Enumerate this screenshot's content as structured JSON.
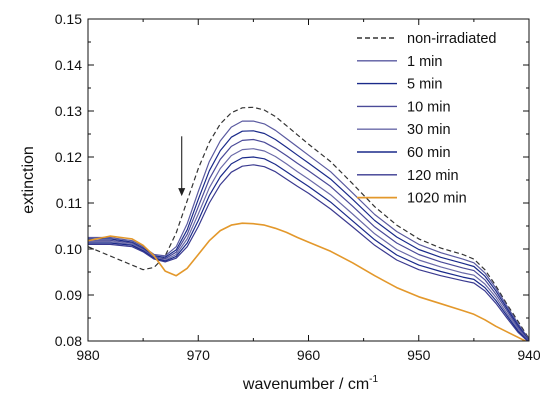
{
  "chart_data": {
    "type": "line",
    "title": "",
    "xlabel": "wavenumber / cm",
    "xlabel_superscript": "-1",
    "ylabel": "extinction",
    "xlim": [
      980,
      940
    ],
    "ylim": [
      0.08,
      0.15
    ],
    "x_reversed": true,
    "grid": false,
    "legend_position": "top-right",
    "x_ticks": [
      "980",
      "970",
      "960",
      "950",
      "940"
    ],
    "y_ticks": [
      "0.08",
      "0.09",
      "0.10",
      "0.11",
      "0.12",
      "0.13",
      "0.14",
      "0.15"
    ],
    "annotations": [
      {
        "type": "arrow",
        "direction": "down",
        "x": 971.5,
        "y_from": 0.1245,
        "y_to": 0.1115
      }
    ],
    "series": [
      {
        "name": "non-irradiated",
        "color": "#333333",
        "dash": true,
        "x": [
          980,
          978,
          976,
          975,
          974,
          973,
          972,
          971,
          970,
          969,
          968,
          967,
          966,
          965,
          964,
          963,
          962,
          961,
          960,
          958,
          956,
          954,
          952,
          950,
          948,
          946,
          945,
          944,
          943,
          942,
          941,
          940
        ],
        "y": [
          0.1005,
          0.0985,
          0.0965,
          0.0955,
          0.096,
          0.0985,
          0.1035,
          0.1105,
          0.1175,
          0.1232,
          0.1272,
          0.1296,
          0.1307,
          0.1308,
          0.1302,
          0.1288,
          0.1268,
          0.1248,
          0.1228,
          0.119,
          0.1142,
          0.1092,
          0.1052,
          0.1022,
          0.1002,
          0.0988,
          0.0978,
          0.0955,
          0.092,
          0.088,
          0.0843,
          0.0805
        ]
      },
      {
        "name": "1 min",
        "color": "#5a5aa0",
        "dash": false,
        "x": [
          980,
          978,
          976,
          975,
          974,
          973,
          972,
          971,
          970,
          969,
          968,
          967,
          966,
          965,
          964,
          963,
          962,
          961,
          960,
          958,
          956,
          954,
          952,
          950,
          948,
          946,
          945,
          944,
          943,
          942,
          941,
          940
        ],
        "y": [
          0.1025,
          0.1025,
          0.1018,
          0.1005,
          0.0988,
          0.0985,
          0.1005,
          0.1055,
          0.1125,
          0.119,
          0.1235,
          0.1265,
          0.1278,
          0.1278,
          0.1272,
          0.1258,
          0.124,
          0.1222,
          0.1204,
          0.1168,
          0.1122,
          0.1075,
          0.1038,
          0.101,
          0.0992,
          0.0978,
          0.097,
          0.0948,
          0.0915,
          0.0876,
          0.0838,
          0.0803
        ]
      },
      {
        "name": "5 min",
        "color": "#1a2a8a",
        "dash": false,
        "x": [
          980,
          978,
          976,
          975,
          974,
          973,
          972,
          971,
          970,
          969,
          968,
          967,
          966,
          965,
          964,
          963,
          962,
          961,
          960,
          958,
          956,
          954,
          952,
          950,
          948,
          946,
          945,
          944,
          943,
          942,
          941,
          940
        ],
        "y": [
          0.1022,
          0.1022,
          0.1015,
          0.1002,
          0.0985,
          0.0982,
          0.0998,
          0.1042,
          0.1108,
          0.117,
          0.1214,
          0.1243,
          0.1256,
          0.1257,
          0.1251,
          0.1238,
          0.1221,
          0.1204,
          0.1187,
          0.1152,
          0.1108,
          0.1062,
          0.1026,
          0.0999,
          0.0982,
          0.0969,
          0.0962,
          0.0941,
          0.0909,
          0.0871,
          0.0834,
          0.0801
        ]
      },
      {
        "name": "10 min",
        "color": "#4a4a98",
        "dash": false,
        "x": [
          980,
          978,
          976,
          975,
          974,
          973,
          972,
          971,
          970,
          969,
          968,
          967,
          966,
          965,
          964,
          963,
          962,
          961,
          960,
          958,
          956,
          954,
          952,
          950,
          948,
          946,
          945,
          944,
          943,
          942,
          941,
          940
        ],
        "y": [
          0.1019,
          0.1019,
          0.1013,
          0.1,
          0.0983,
          0.0979,
          0.0993,
          0.1032,
          0.1092,
          0.1152,
          0.1195,
          0.1223,
          0.1236,
          0.1238,
          0.1232,
          0.1219,
          0.1203,
          0.1186,
          0.117,
          0.1136,
          0.1093,
          0.1048,
          0.1013,
          0.0988,
          0.0972,
          0.0959,
          0.0953,
          0.0933,
          0.0902,
          0.0866,
          0.083,
          0.08
        ]
      },
      {
        "name": "30 min",
        "color": "#6a6aa8",
        "dash": false,
        "x": [
          980,
          978,
          976,
          975,
          974,
          973,
          972,
          971,
          970,
          969,
          968,
          967,
          966,
          965,
          964,
          963,
          962,
          961,
          960,
          958,
          956,
          954,
          952,
          950,
          948,
          946,
          945,
          944,
          943,
          942,
          941,
          940
        ],
        "y": [
          0.1016,
          0.1016,
          0.101,
          0.0998,
          0.0981,
          0.0976,
          0.0988,
          0.1022,
          0.1076,
          0.1133,
          0.1175,
          0.1203,
          0.1216,
          0.1218,
          0.1213,
          0.1201,
          0.1185,
          0.1168,
          0.1152,
          0.1118,
          0.1076,
          0.1033,
          0.0999,
          0.0976,
          0.0961,
          0.0948,
          0.0943,
          0.0924,
          0.0895,
          0.086,
          0.0826,
          0.0799
        ]
      },
      {
        "name": "60 min",
        "color": "#1a2a8a",
        "dash": false,
        "x": [
          980,
          978,
          976,
          975,
          974,
          973,
          972,
          971,
          970,
          969,
          968,
          967,
          966,
          965,
          964,
          963,
          962,
          961,
          960,
          958,
          956,
          954,
          952,
          950,
          948,
          946,
          945,
          944,
          943,
          942,
          941,
          940
        ],
        "y": [
          0.1013,
          0.1013,
          0.1008,
          0.0996,
          0.098,
          0.0974,
          0.0984,
          0.1013,
          0.1062,
          0.1116,
          0.1157,
          0.1185,
          0.1198,
          0.12,
          0.1196,
          0.1184,
          0.1168,
          0.1152,
          0.1136,
          0.1102,
          0.1061,
          0.102,
          0.0987,
          0.0965,
          0.0951,
          0.0939,
          0.0934,
          0.0916,
          0.0888,
          0.0855,
          0.0822,
          0.0798
        ]
      },
      {
        "name": "120 min",
        "color": "#3a3a90",
        "dash": false,
        "x": [
          980,
          978,
          976,
          975,
          974,
          973,
          972,
          971,
          970,
          969,
          968,
          967,
          966,
          965,
          964,
          963,
          962,
          961,
          960,
          958,
          956,
          954,
          952,
          950,
          948,
          946,
          945,
          944,
          943,
          942,
          941,
          940
        ],
        "y": [
          0.101,
          0.101,
          0.1005,
          0.0994,
          0.0978,
          0.0972,
          0.098,
          0.1005,
          0.1049,
          0.11,
          0.114,
          0.1167,
          0.118,
          0.1183,
          0.1179,
          0.1168,
          0.1152,
          0.1136,
          0.1121,
          0.1087,
          0.1048,
          0.1008,
          0.0976,
          0.0955,
          0.0942,
          0.0931,
          0.0926,
          0.0909,
          0.0882,
          0.085,
          0.0819,
          0.0797
        ]
      },
      {
        "name": "1020 min",
        "color": "#e3982b",
        "dash": false,
        "x": [
          980,
          978,
          976,
          975,
          974,
          973,
          972,
          971,
          970,
          969,
          968,
          967,
          966,
          965,
          964,
          963,
          962,
          961,
          960,
          958,
          956,
          954,
          952,
          950,
          948,
          946,
          945,
          944,
          943,
          942,
          941,
          940
        ],
        "y": [
          0.1018,
          0.1028,
          0.1022,
          0.1008,
          0.0985,
          0.0952,
          0.0942,
          0.0958,
          0.0988,
          0.1018,
          0.104,
          0.1052,
          0.1056,
          0.1055,
          0.1052,
          0.1045,
          0.1036,
          0.1025,
          0.1015,
          0.0995,
          0.097,
          0.0942,
          0.0916,
          0.0896,
          0.0881,
          0.0866,
          0.0858,
          0.0846,
          0.0832,
          0.082,
          0.0808,
          0.0796
        ]
      }
    ]
  }
}
